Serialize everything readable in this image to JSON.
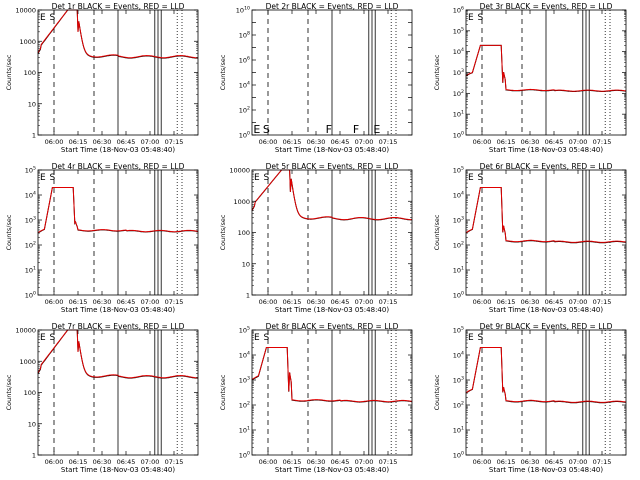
{
  "chart_data": [
    {
      "type": "line",
      "title": "Det 1r BLACK = Events, RED = LLD",
      "xlabel": "Start Time (18-Nov-03 05:48:40)",
      "ylabel": "Counts/sec",
      "yscale": "log",
      "ylim": [
        1,
        10000
      ],
      "y_ticks": [
        "1",
        "10",
        "100",
        "1000",
        "10000"
      ],
      "x_ticks": [
        "06:00",
        "06:15",
        "06:30",
        "06:45",
        "07:00",
        "07:15"
      ],
      "xlim": [
        0,
        100
      ],
      "markers": [
        {
          "label": "E",
          "x": 3
        },
        {
          "label": "S",
          "x": 9
        }
      ],
      "series": [
        {
          "color": "#000000",
          "curve": "sat",
          "params": [
            400,
            10000,
            0.5,
            2000,
            25,
            4000,
            330,
            0.7
          ]
        },
        {
          "color": "#e00000",
          "curve": "sat",
          "params": [
            420,
            10000,
            0.5,
            2000,
            25,
            4000,
            340,
            0.7
          ]
        }
      ]
    },
    {
      "type": "line",
      "title": "Det 2r BLACK = Events, RED = LLD",
      "xlabel": "Start Time (18-Nov-03 05:48:40)",
      "ylabel": "Counts/sec",
      "yscale": "log",
      "ylim": [
        1,
        10000000000
      ],
      "y_ticks": [
        "10^0",
        "10^2",
        "10^4",
        "10^6",
        "10^8",
        "10^10"
      ],
      "x_ticks": [
        "06:00",
        "06:15",
        "06:30",
        "06:45",
        "07:00",
        "07:15"
      ],
      "xlim": [
        0,
        100
      ],
      "markers": [
        {
          "label": "E",
          "x": 3
        },
        {
          "label": "S",
          "x": 9
        },
        {
          "label": "F",
          "x": 48
        },
        {
          "label": "F",
          "x": 65
        },
        {
          "label": "E",
          "x": 78
        }
      ],
      "series": []
    },
    {
      "type": "line",
      "title": "Det 3r BLACK = Events, RED = LLD",
      "xlabel": "Start Time (18-Nov-03 05:48:40)",
      "ylabel": "Counts/sec",
      "yscale": "log",
      "ylim": [
        1,
        1000000
      ],
      "y_ticks": [
        "10^0",
        "10^1",
        "10^2",
        "10^3",
        "10^4",
        "10^5",
        "10^6"
      ],
      "x_ticks": [
        "06:00",
        "06:15",
        "06:30",
        "06:45",
        "07:00",
        "07:15"
      ],
      "xlim": [
        0,
        100
      ],
      "markers": [
        {
          "label": "E",
          "x": 3
        },
        {
          "label": "S",
          "x": 9
        }
      ],
      "series": [
        {
          "color": "#000000",
          "curve": "plat",
          "params": [
            700,
            20000,
            0.5,
            1200,
            140,
            0.7
          ]
        },
        {
          "color": "#e00000",
          "curve": "plat",
          "params": [
            720,
            20000,
            0.5,
            1200,
            145,
            0.7
          ]
        }
      ]
    },
    {
      "type": "line",
      "title": "Det 4r BLACK = Events, RED = LLD",
      "xlabel": "Start Time (18-Nov-03 05:48:40)",
      "ylabel": "Counts/sec",
      "yscale": "log",
      "ylim": [
        1,
        100000
      ],
      "y_ticks": [
        "10^0",
        "10^1",
        "10^2",
        "10^3",
        "10^4",
        "10^5"
      ],
      "x_ticks": [
        "06:00",
        "06:15",
        "06:30",
        "06:45",
        "07:00",
        "07:15"
      ],
      "xlim": [
        0,
        100
      ],
      "markers": [
        {
          "label": "E",
          "x": 3
        },
        {
          "label": "S",
          "x": 9
        }
      ],
      "series": [
        {
          "color": "#000000",
          "curve": "plat",
          "params": [
            300,
            20000,
            0.5,
            600,
            380,
            0.9
          ]
        },
        {
          "color": "#e00000",
          "curve": "plat",
          "params": [
            310,
            20000,
            0.5,
            600,
            390,
            0.9
          ]
        }
      ]
    },
    {
      "type": "line",
      "title": "Det 5r BLACK = Events, RED = LLD",
      "xlabel": "Start Time (18-Nov-03 05:48:40)",
      "ylabel": "Counts/sec",
      "yscale": "log",
      "ylim": [
        1,
        10000
      ],
      "y_ticks": [
        "1",
        "10",
        "100",
        "1000",
        "10000"
      ],
      "x_ticks": [
        "06:00",
        "06:15",
        "06:30",
        "06:45",
        "07:00",
        "07:15"
      ],
      "xlim": [
        0,
        100
      ],
      "markers": [
        {
          "label": "E",
          "x": 3
        },
        {
          "label": "S",
          "x": 9
        }
      ],
      "series": [
        {
          "color": "#000000",
          "curve": "sat",
          "params": [
            500,
            10000,
            0.5,
            2000,
            24,
            5000,
            290,
            0.7
          ]
        },
        {
          "color": "#e00000",
          "curve": "sat",
          "params": [
            510,
            10000,
            0.5,
            2000,
            24,
            5000,
            295,
            0.7
          ]
        }
      ]
    },
    {
      "type": "line",
      "title": "Det 6r BLACK = Events, RED = LLD",
      "xlabel": "Start Time (18-Nov-03 05:48:40)",
      "ylabel": "Counts/sec",
      "yscale": "log",
      "ylim": [
        1,
        100000
      ],
      "y_ticks": [
        "10^0",
        "10^1",
        "10^2",
        "10^3",
        "10^4",
        "10^5"
      ],
      "x_ticks": [
        "06:00",
        "06:15",
        "06:30",
        "06:45",
        "07:00",
        "07:15"
      ],
      "xlim": [
        0,
        100
      ],
      "markers": [
        {
          "label": "E",
          "x": 3
        },
        {
          "label": "S",
          "x": 9
        }
      ],
      "series": [
        {
          "color": "#000000",
          "curve": "plat",
          "params": [
            300,
            20000,
            0.5,
            600,
            140,
            0.7
          ]
        },
        {
          "color": "#e00000",
          "curve": "plat",
          "params": [
            310,
            20000,
            0.5,
            600,
            145,
            0.7
          ]
        }
      ]
    },
    {
      "type": "line",
      "title": "Det 7r BLACK = Events, RED = LLD",
      "xlabel": "Start Time (18-Nov-03 05:48:40)",
      "ylabel": "Counts/sec",
      "yscale": "log",
      "ylim": [
        1,
        10000
      ],
      "y_ticks": [
        "1",
        "10",
        "100",
        "1000",
        "10000"
      ],
      "x_ticks": [
        "06:00",
        "06:15",
        "06:30",
        "06:45",
        "07:00",
        "07:15"
      ],
      "xlim": [
        0,
        100
      ],
      "markers": [
        {
          "label": "E",
          "x": 3
        },
        {
          "label": "S",
          "x": 9
        }
      ],
      "series": [
        {
          "color": "#000000",
          "curve": "sat",
          "params": [
            400,
            10000,
            0.5,
            2000,
            25,
            4000,
            330,
            0.7
          ]
        },
        {
          "color": "#e00000",
          "curve": "sat",
          "params": [
            420,
            10000,
            0.5,
            2000,
            25,
            4000,
            340,
            0.7
          ]
        }
      ]
    },
    {
      "type": "line",
      "title": "Det 8r BLACK = Events, RED = LLD",
      "xlabel": "Start Time (18-Nov-03 05:48:40)",
      "ylabel": "Counts/sec",
      "yscale": "log",
      "ylim": [
        1,
        100000
      ],
      "y_ticks": [
        "10^0",
        "10^1",
        "10^2",
        "10^3",
        "10^4",
        "10^5"
      ],
      "x_ticks": [
        "06:00",
        "06:15",
        "06:30",
        "06:45",
        "07:00",
        "07:15"
      ],
      "xlim": [
        0,
        100
      ],
      "markers": [
        {
          "label": "E",
          "x": 3
        },
        {
          "label": "S",
          "x": 9
        }
      ],
      "series": [
        {
          "color": "#000000",
          "curve": "plat",
          "params": [
            1000,
            20000,
            3,
            2500,
            150,
            0.7
          ]
        },
        {
          "color": "#e00000",
          "curve": "plat",
          "params": [
            1050,
            20000,
            3,
            2500,
            155,
            0.7
          ]
        }
      ]
    },
    {
      "type": "line",
      "title": "Det 9r BLACK = Events, RED = LLD",
      "xlabel": "Start Time (18-Nov-03 05:48:40)",
      "ylabel": "Counts/sec",
      "yscale": "log",
      "ylim": [
        1,
        100000
      ],
      "y_ticks": [
        "10^0",
        "10^1",
        "10^2",
        "10^3",
        "10^4",
        "10^5"
      ],
      "x_ticks": [
        "06:00",
        "06:15",
        "06:30",
        "06:45",
        "07:00",
        "07:15"
      ],
      "xlim": [
        0,
        100
      ],
      "markers": [
        {
          "label": "E",
          "x": 3
        },
        {
          "label": "S",
          "x": 9
        }
      ],
      "series": [
        {
          "color": "#000000",
          "curve": "plat",
          "params": [
            300,
            20000,
            0.5,
            500,
            140,
            0.7
          ]
        },
        {
          "color": "#e00000",
          "curve": "plat",
          "params": [
            310,
            20000,
            0.5,
            500,
            145,
            0.7
          ]
        }
      ]
    }
  ]
}
